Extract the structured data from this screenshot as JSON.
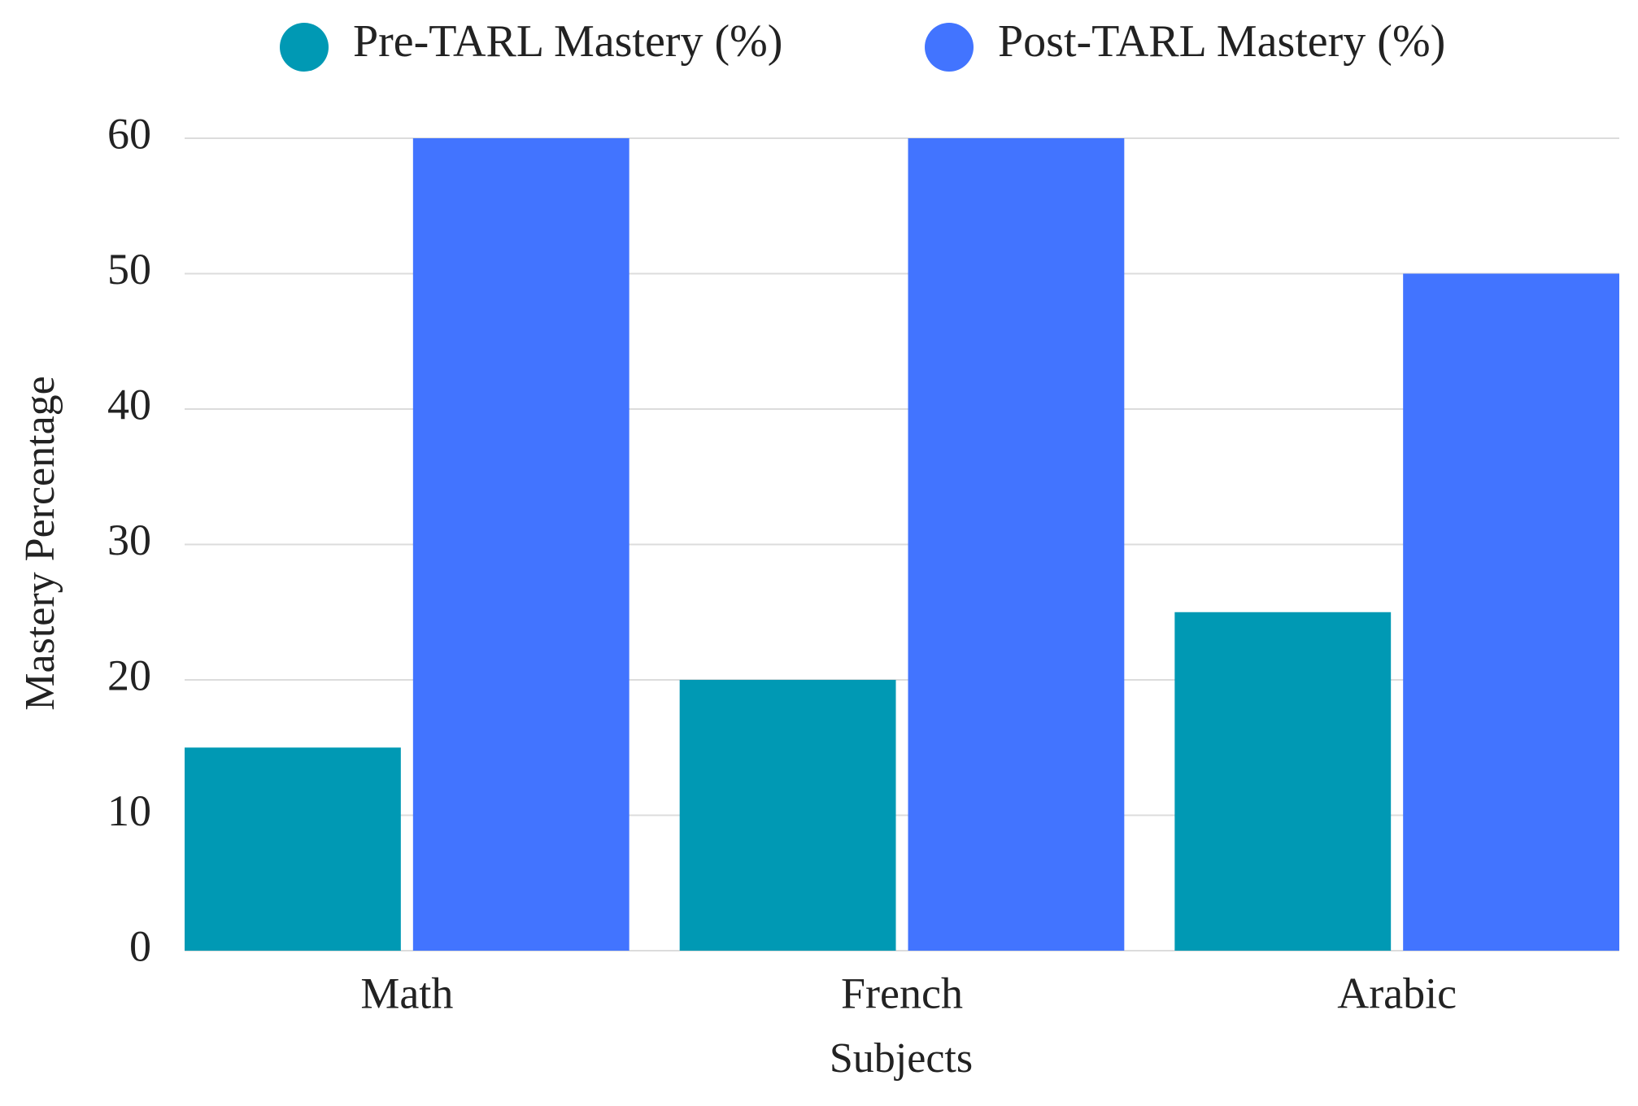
{
  "chart_data": {
    "type": "bar",
    "categories": [
      "Math",
      "French",
      "Arabic"
    ],
    "series": [
      {
        "name": "Pre-TARL Mastery (%)",
        "color": "#0099b4",
        "values": [
          15,
          20,
          25
        ]
      },
      {
        "name": "Post-TARL Mastery (%)",
        "color": "#4274ff",
        "values": [
          60,
          60,
          50
        ]
      }
    ],
    "x_label": "Subjects",
    "y_label": "Mastery Percentage",
    "ylim": [
      0,
      60
    ],
    "yticks": [
      0,
      10,
      20,
      30,
      40,
      50,
      60
    ],
    "grid": true,
    "legend": "top"
  }
}
